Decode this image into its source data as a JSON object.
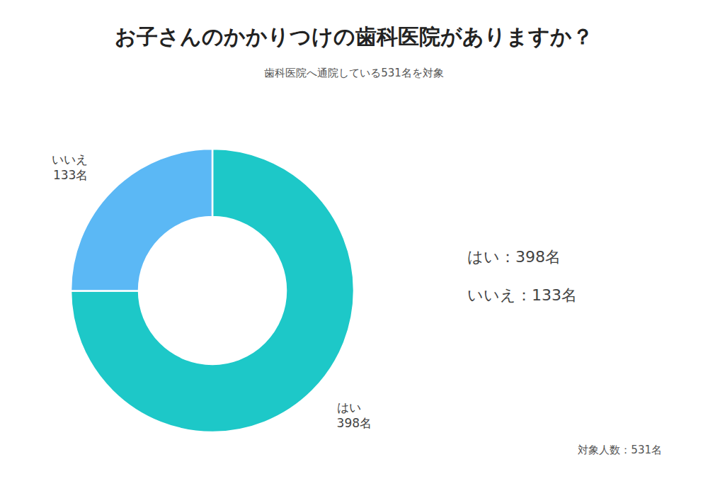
{
  "chart_data": {
    "type": "pie",
    "title": "お子さんのかかりつけの歯科医院がありますか？",
    "subtitle": "歯科医院へ通院している531名を対象",
    "categories": [
      "はい",
      "いいえ"
    ],
    "values": [
      398,
      133
    ],
    "value_labels": [
      "398名",
      "133名"
    ],
    "colors": [
      "#1DC8C8",
      "#5BB8F5"
    ],
    "data_labels": true,
    "annotations": [
      "はい：398名",
      "いいえ：133名",
      "対象人数：531名"
    ]
  }
}
